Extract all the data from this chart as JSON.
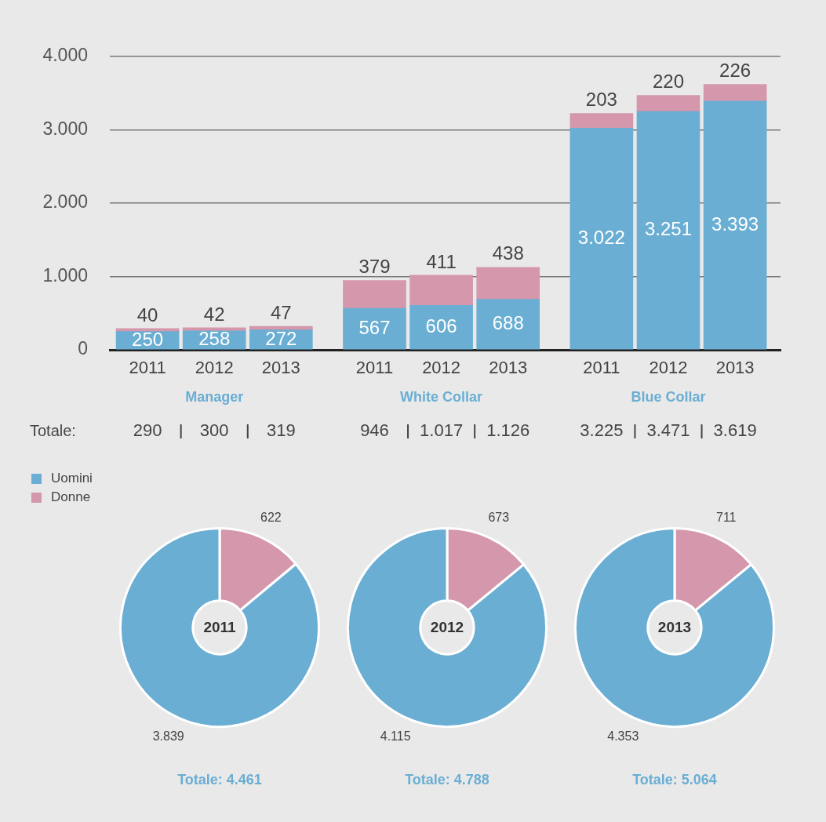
{
  "chart_data": [
    {
      "type": "bar",
      "stacked": true,
      "categories": [
        "2011",
        "2012",
        "2013",
        "2011",
        "2012",
        "2013",
        "2011",
        "2012",
        "2013"
      ],
      "series": [
        {
          "name": "Uomini",
          "color": "#6aaed3",
          "values": [
            250,
            258,
            272,
            567,
            606,
            688,
            3022,
            3251,
            3393
          ],
          "value_labels": [
            "250",
            "258",
            "272",
            "567",
            "606",
            "688",
            "3.022",
            "3.251",
            "3.393"
          ]
        },
        {
          "name": "Donne",
          "color": "#d497ab",
          "values": [
            40,
            42,
            47,
            379,
            411,
            438,
            203,
            220,
            226
          ],
          "value_labels": [
            "40",
            "42",
            "47",
            "379",
            "411",
            "438",
            "203",
            "220",
            "226"
          ]
        }
      ],
      "ylim": [
        0,
        4000
      ],
      "yticks": [
        0,
        {
          "value": 1000,
          "label": "1.000"
        },
        {
          "value": 2000,
          "label": "2.000"
        },
        {
          "value": 3000,
          "label": "3.000"
        },
        {
          "value": 4000,
          "label": "4.000"
        }
      ],
      "grid": "y",
      "legend": "bottom left",
      "annotations": [
        "Manager",
        "White Collar",
        "Blue Collar",
        "Totale:",
        "290",
        "300",
        "319",
        "946",
        "1.017",
        "1.126",
        "3.225",
        "3.471",
        "3.619"
      ]
    },
    {
      "type": "donut",
      "title": "2011",
      "categories": [
        null,
        null
      ],
      "values": [
        622,
        3839
      ],
      "colors": [
        "#d497ab",
        "#6aaed3"
      ],
      "value_labels": [
        "622",
        "3.839"
      ],
      "annotations": [
        "Totale: 4.461"
      ]
    },
    {
      "type": "donut",
      "title": "2012",
      "categories": [
        null,
        null
      ],
      "values": [
        673,
        4115
      ],
      "colors": [
        "#d497ab",
        "#6aaed3"
      ],
      "value_labels": [
        "673",
        "4.115"
      ],
      "annotations": [
        "Totale: 4.788"
      ]
    },
    {
      "type": "donut",
      "title": "2013",
      "categories": [
        null,
        null
      ],
      "values": [
        711,
        4353
      ],
      "colors": [
        "#d497ab",
        "#6aaed3"
      ],
      "value_labels": [
        "711",
        "4.353"
      ],
      "annotations": [
        "Totale: 5.064"
      ]
    }
  ]
}
